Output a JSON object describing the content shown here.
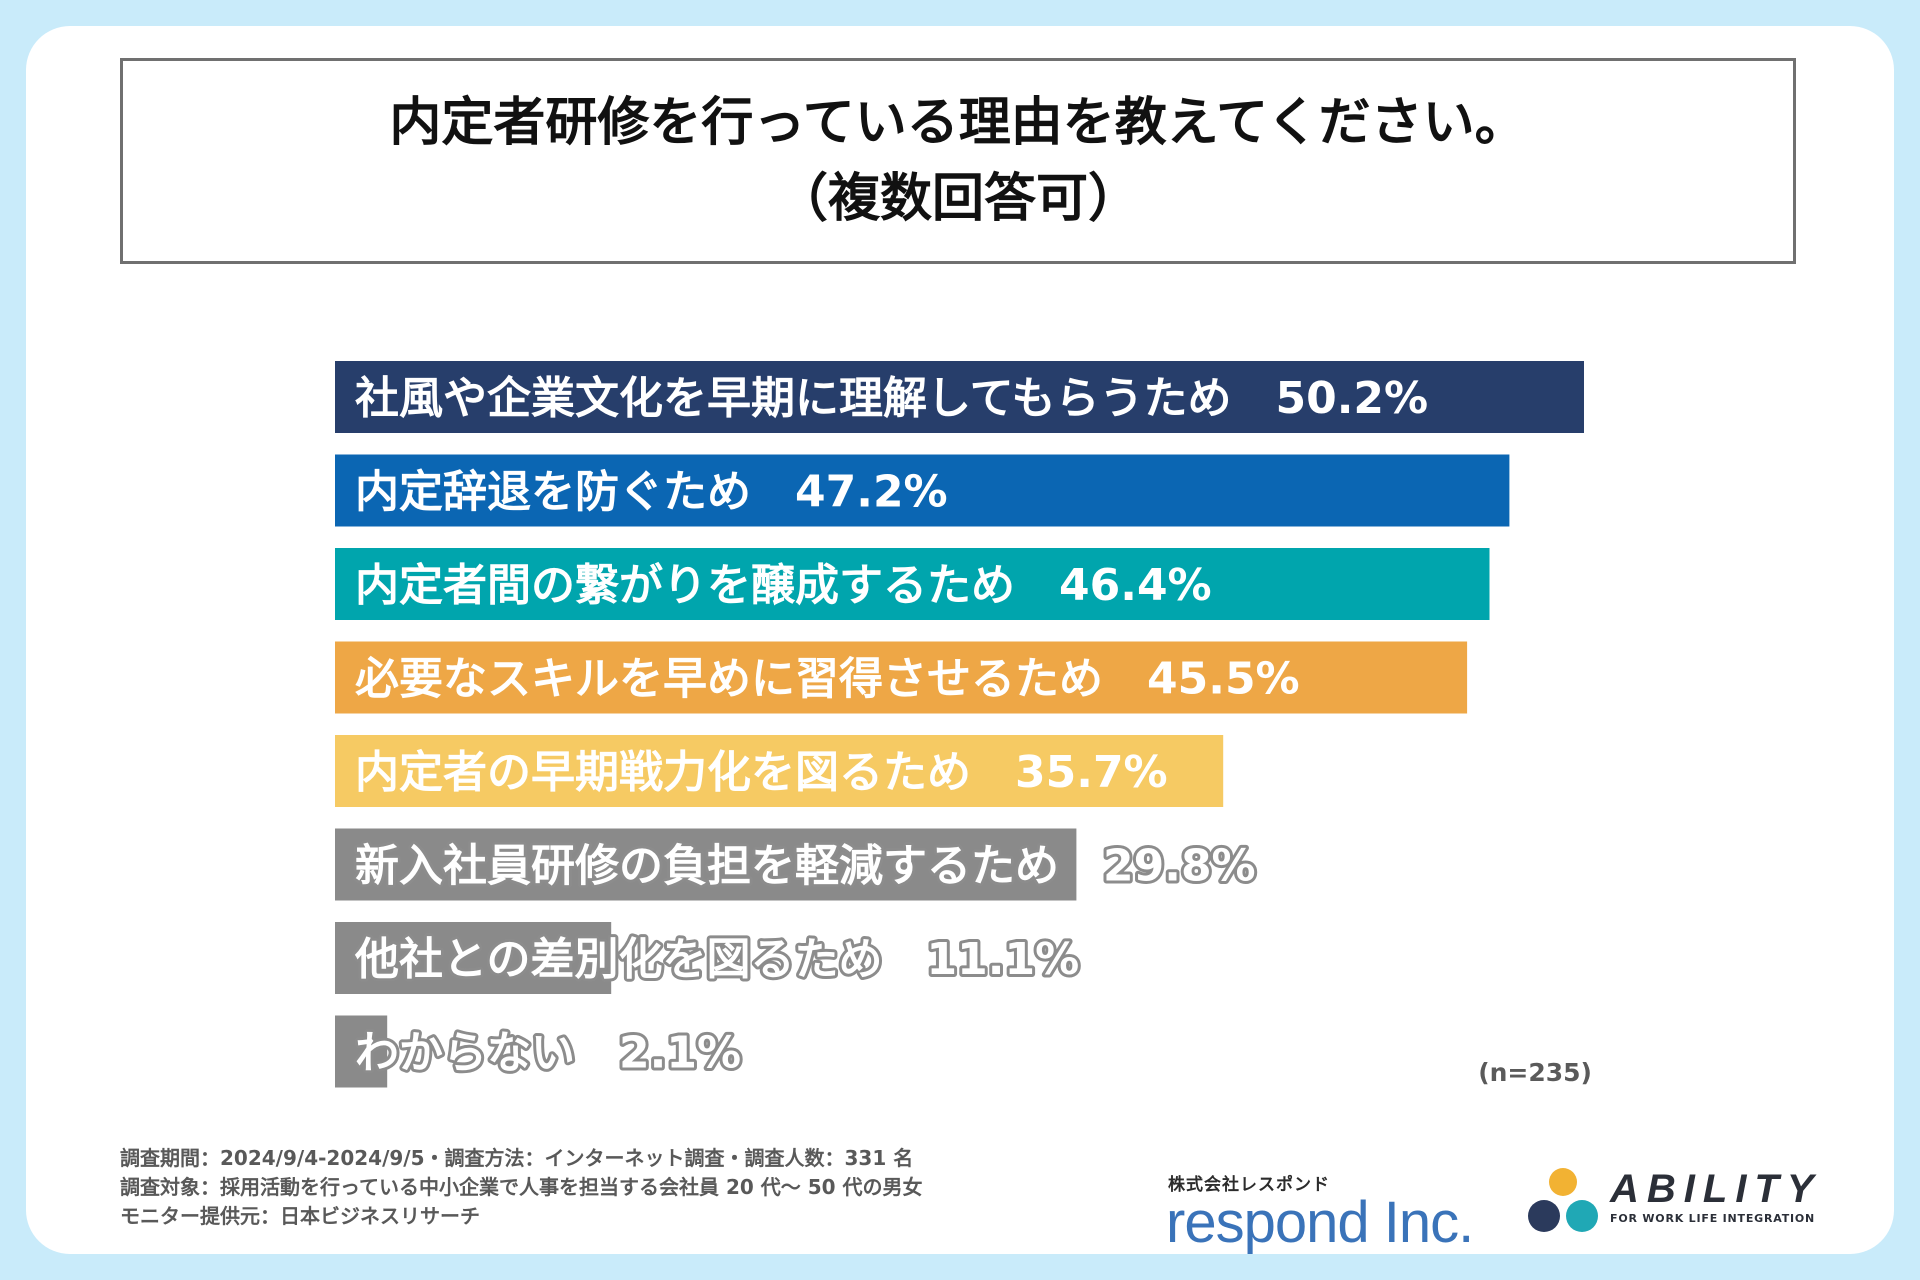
{
  "title": {
    "line1": "内定者研修を行っている理由を教えてください。",
    "line2": "（複数回答可）"
  },
  "chart_data": {
    "type": "bar",
    "orientation": "horizontal",
    "title": "内定者研修を行っている理由を教えてください。（複数回答可）",
    "categories": [
      "社風や企業文化を早期に理解してもらうため",
      "内定辞退を防ぐため",
      "内定者間の繋がりを醸成するため",
      "必要なスキルを早めに習得させるため",
      "内定者の早期戦力化を図るため",
      "新入社員研修の負担を軽減するため",
      "他社との差別化を図るため",
      "わからない"
    ],
    "values": [
      50.2,
      47.2,
      46.4,
      45.5,
      35.7,
      29.8,
      11.1,
      2.1
    ],
    "value_labels": [
      "50.2%",
      "47.2%",
      "46.4%",
      "45.5%",
      "35.7%",
      "29.8%",
      "11.1%",
      "2.1%"
    ],
    "colors": [
      "#273e6b",
      "#0b66b3",
      "#00a5ad",
      "#eea746",
      "#f6ca63",
      "#8a8a8a",
      "#8a8a8a",
      "#8a8a8a"
    ],
    "unit": "%",
    "xlim": [
      0,
      50.2
    ],
    "grid": false,
    "legend": "none"
  },
  "sample_note": "(n=235)",
  "footnotes": [
    "調査期間：2024/9/4-2024/9/5・調査方法：インターネット調査・調査人数：331 名",
    "調査対象：採用活動を行っている中小企業で人事を担当する会社員 20 代〜 50 代の男女",
    "モニター提供元：日本ビジネスリサーチ"
  ],
  "logos": {
    "respond_sub": "株式会社レスポンド",
    "respond_main": "respond Inc.",
    "ability_name": "ABILITY",
    "ability_tagline": "FOR WORK LIFE INTEGRATION",
    "ability_colors": [
      "#f2b233",
      "#2b3a5c",
      "#20a8b5"
    ]
  }
}
